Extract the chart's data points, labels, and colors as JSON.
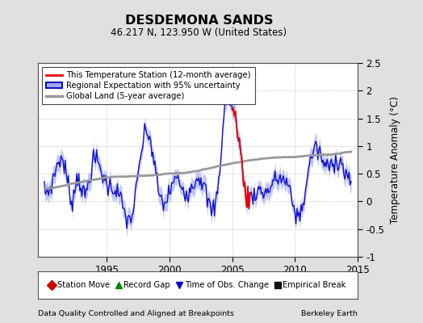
{
  "title": "DESDEMONA SANDS",
  "subtitle": "46.217 N, 123.950 W (United States)",
  "ylabel": "Temperature Anomaly (°C)",
  "xlabel_left": "Data Quality Controlled and Aligned at Breakpoints",
  "xlabel_right": "Berkeley Earth",
  "ylim": [
    -1.0,
    2.5
  ],
  "xlim": [
    1989.5,
    2015.0
  ],
  "xticks": [
    1995,
    2000,
    2005,
    2010,
    2015
  ],
  "yticks": [
    -1.0,
    -0.5,
    0.0,
    0.5,
    1.0,
    1.5,
    2.0,
    2.5
  ],
  "bg_color": "#e0e0e0",
  "plot_bg_color": "#ffffff",
  "regional_color": "#1010cc",
  "regional_fill_color": "#a0aaee",
  "station_color": "#ee0000",
  "global_color": "#999999",
  "legend2_items": [
    {
      "label": "Station Move",
      "marker": "D",
      "color": "#cc0000"
    },
    {
      "label": "Record Gap",
      "marker": "^",
      "color": "#008800"
    },
    {
      "label": "Time of Obs. Change",
      "marker": "v",
      "color": "#0000cc"
    },
    {
      "label": "Empirical Break",
      "marker": "s",
      "color": "#111111"
    }
  ]
}
